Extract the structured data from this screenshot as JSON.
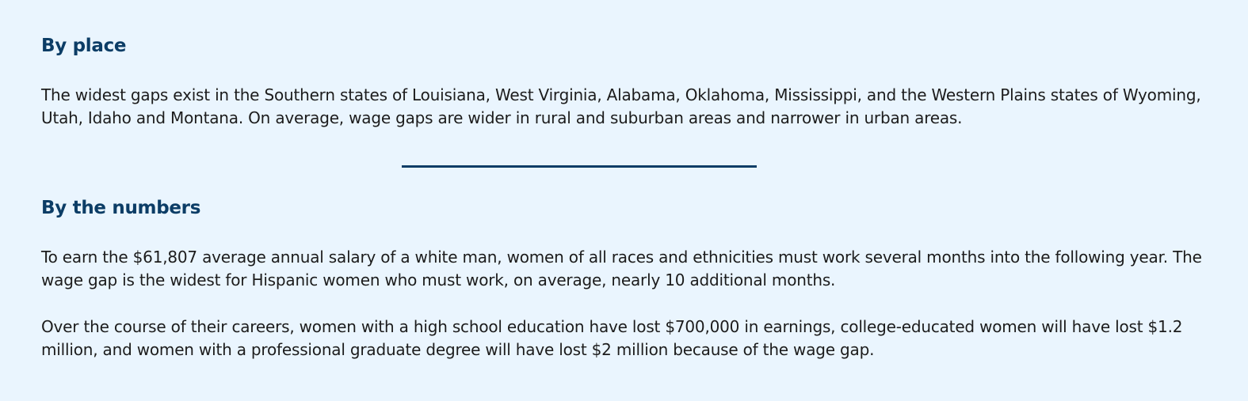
{
  "by_place": {
    "heading": "By place",
    "paragraph": "The widest gaps exist in the Southern states of Louisiana, West Virginia, Alabama, Oklahoma, Mississippi, and the Western Plains states of Wyoming, Utah, Idaho and Montana. On average, wage gaps are wider in rural and suburban areas and narrower in urban areas."
  },
  "by_numbers": {
    "heading": "By the numbers",
    "paragraphs": [
      "To earn the $61,807 average annual salary of a white man, women of all races and ethnicities must work several months into the following year. The wage gap is the widest for Hispanic women who must work, on average, nearly 10 additional months.",
      "Over the course of their careers, women with a high school education have lost $700,000 in earnings, college-educated women will have lost $1.2 million, and women with a professional graduate degree will have lost $2 million because of the wage gap."
    ]
  },
  "colors": {
    "background": "#eaf5fe",
    "heading": "#0c3d66",
    "text": "#1c1c1c",
    "divider": "#0c3d66"
  }
}
